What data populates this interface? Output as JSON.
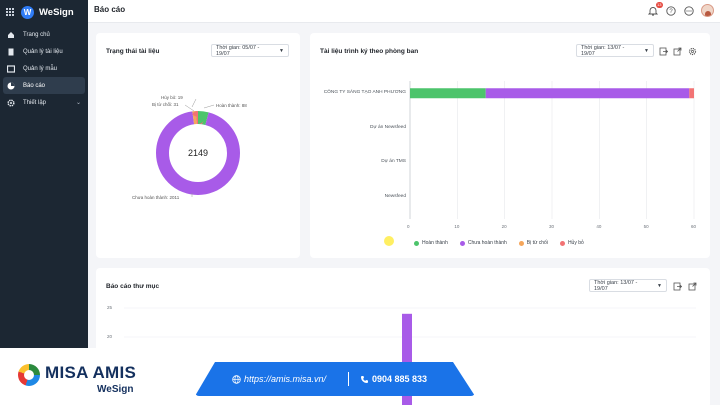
{
  "app": {
    "name": "WeSign"
  },
  "sidebar": {
    "items": [
      {
        "label": "Trang chủ"
      },
      {
        "label": "Quản lý tài liệu"
      },
      {
        "label": "Quản lý mẫu"
      },
      {
        "label": "Báo cáo"
      },
      {
        "label": "Thiết lập"
      }
    ]
  },
  "topbar": {
    "title": "Báo cáo",
    "notification_count": "13"
  },
  "status_card": {
    "title": "Trạng thái tài liệu",
    "time_filter": "Thời gian: 05/07 - 19/07",
    "total": "2149",
    "labels": {
      "cancelled": "Hủy bỏ: 19",
      "rejected": "Bị từ chối: 31",
      "completed": "Hoàn thành: 88",
      "pending": "Chưa hoàn thành: 2011"
    }
  },
  "dept_card": {
    "title": "Tài liệu trình ký theo phòng ban",
    "time_filter": "Thời gian: 13/07 - 19/07",
    "legend": [
      "Hoàn thành",
      "Chưa hoàn thành",
      "Bị từ chối",
      "Hủy bỏ"
    ]
  },
  "folder_card": {
    "title": "Báo cáo thư mục",
    "time_filter": "Thời gian: 13/07 - 19/07"
  },
  "banner": {
    "brand": "MISA AMIS",
    "product": "WeSign",
    "url": "https://amis.misa.vn/",
    "phone": "0904 885 833"
  },
  "colors": {
    "completed": "#4cc46b",
    "pending": "#a85be8",
    "rejected": "#f5a65b",
    "cancelled": "#f27374",
    "sidebar": "#1c2733",
    "accent": "#1a73e8"
  },
  "chart_data": [
    {
      "type": "pie",
      "title": "Trạng thái tài liệu",
      "categories": [
        "Hoàn thành",
        "Chưa hoàn thành",
        "Bị từ chối",
        "Hủy bỏ"
      ],
      "values": [
        88,
        2011,
        31,
        19
      ],
      "total": 2149
    },
    {
      "type": "bar",
      "orientation": "horizontal",
      "stacked": true,
      "title": "Tài liệu trình ký theo phòng ban",
      "categories": [
        "CÔNG TY SÁNG TẠO ANH PHƯƠNG",
        "Dự án Newsfeed",
        "Dự án TMS",
        "Newsfeed"
      ],
      "series": [
        {
          "name": "Hoàn thành",
          "values": [
            16,
            0,
            0,
            0
          ]
        },
        {
          "name": "Chưa hoàn thành",
          "values": [
            43,
            0,
            0,
            0
          ]
        },
        {
          "name": "Bị từ chối",
          "values": [
            0,
            0,
            0,
            0
          ]
        },
        {
          "name": "Hủy bỏ",
          "values": [
            1,
            0,
            0,
            0
          ]
        }
      ],
      "xticks": [
        "0",
        "10",
        "20",
        "30",
        "40",
        "50",
        "60"
      ],
      "xlim": [
        0,
        60
      ],
      "grid": true,
      "legend_position": "bottom"
    },
    {
      "type": "bar",
      "title": "Báo cáo thư mục",
      "yticks": [
        "25",
        "20"
      ],
      "values": [
        24
      ],
      "ylim": [
        0,
        25
      ]
    }
  ]
}
